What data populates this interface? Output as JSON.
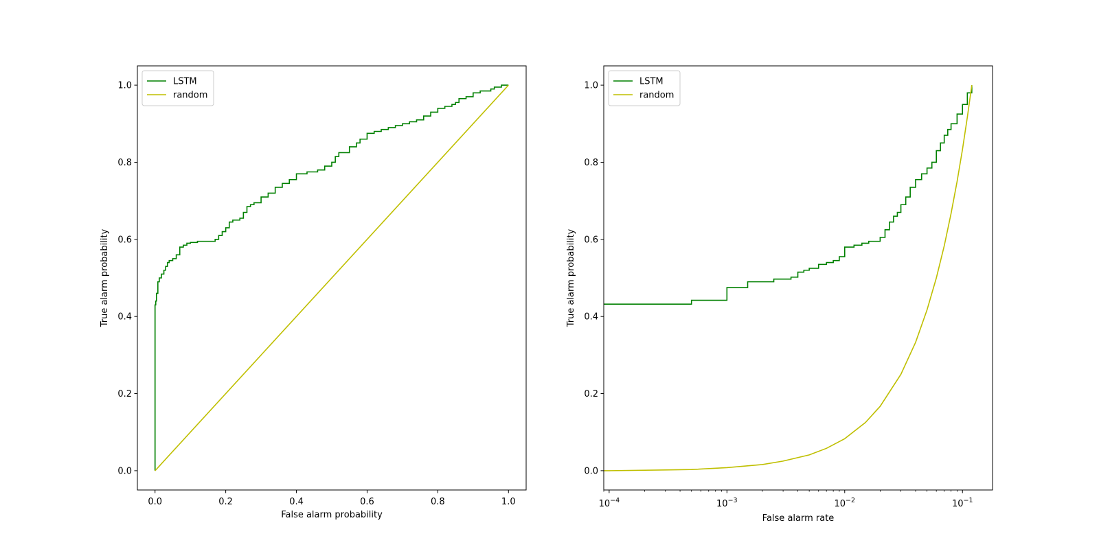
{
  "chart_data": [
    {
      "type": "line",
      "xlabel": "False alarm probability",
      "ylabel": "True alarm probability",
      "xscale": "linear",
      "xlim": [
        -0.05,
        1.05
      ],
      "ylim": [
        -0.05,
        1.05
      ],
      "xticks": [
        0.0,
        0.2,
        0.4,
        0.6,
        0.8,
        1.0
      ],
      "xtick_labels": [
        "0.0",
        "0.2",
        "0.4",
        "0.6",
        "0.8",
        "1.0"
      ],
      "yticks": [
        0.0,
        0.2,
        0.4,
        0.6,
        0.8,
        1.0
      ],
      "ytick_labels": [
        "0.0",
        "0.2",
        "0.4",
        "0.6",
        "0.8",
        "1.0"
      ],
      "legend": "top-left",
      "grid": false,
      "series": [
        {
          "name": "LSTM",
          "color": "#008000",
          "step": true,
          "x": [
            0.0,
            0.0,
            0.002,
            0.004,
            0.008,
            0.012,
            0.018,
            0.025,
            0.03,
            0.035,
            0.04,
            0.05,
            0.06,
            0.07,
            0.08,
            0.09,
            0.1,
            0.12,
            0.15,
            0.17,
            0.18,
            0.19,
            0.2,
            0.21,
            0.22,
            0.24,
            0.25,
            0.26,
            0.27,
            0.28,
            0.3,
            0.32,
            0.34,
            0.36,
            0.38,
            0.4,
            0.43,
            0.46,
            0.48,
            0.5,
            0.51,
            0.52,
            0.55,
            0.57,
            0.58,
            0.6,
            0.62,
            0.64,
            0.66,
            0.68,
            0.7,
            0.72,
            0.74,
            0.76,
            0.78,
            0.8,
            0.82,
            0.84,
            0.85,
            0.86,
            0.88,
            0.9,
            0.92,
            0.95,
            0.96,
            0.98,
            1.0
          ],
          "y": [
            0.0,
            0.43,
            0.44,
            0.46,
            0.49,
            0.5,
            0.51,
            0.52,
            0.53,
            0.54,
            0.545,
            0.55,
            0.56,
            0.58,
            0.585,
            0.59,
            0.592,
            0.595,
            0.595,
            0.6,
            0.61,
            0.62,
            0.63,
            0.645,
            0.65,
            0.655,
            0.67,
            0.685,
            0.69,
            0.695,
            0.71,
            0.72,
            0.735,
            0.745,
            0.755,
            0.77,
            0.775,
            0.78,
            0.79,
            0.8,
            0.815,
            0.825,
            0.84,
            0.85,
            0.86,
            0.875,
            0.88,
            0.885,
            0.89,
            0.895,
            0.9,
            0.905,
            0.91,
            0.92,
            0.93,
            0.94,
            0.945,
            0.95,
            0.955,
            0.965,
            0.97,
            0.98,
            0.985,
            0.99,
            0.995,
            1.0,
            1.0
          ]
        },
        {
          "name": "random",
          "color": "#bfbf00",
          "x": [
            0.0,
            1.0
          ],
          "y": [
            0.0,
            1.0
          ]
        }
      ]
    },
    {
      "type": "line",
      "xlabel": "False alarm rate",
      "ylabel": "True alarm probability",
      "xscale": "log",
      "xlim": [
        9e-05,
        0.18
      ],
      "ylim": [
        -0.05,
        1.05
      ],
      "xticks": [
        0.0001,
        0.001,
        0.01,
        0.1
      ],
      "xtick_labels": [
        "10⁻⁴",
        "10⁻³",
        "10⁻²",
        "10⁻¹"
      ],
      "yticks": [
        0.0,
        0.2,
        0.4,
        0.6,
        0.8,
        1.0
      ],
      "ytick_labels": [
        "0.0",
        "0.2",
        "0.4",
        "0.6",
        "0.8",
        "1.0"
      ],
      "legend": "top-left",
      "grid": false,
      "series": [
        {
          "name": "LSTM",
          "color": "#008000",
          "step": true,
          "x": [
            9e-05,
            0.0005,
            0.001,
            0.0015,
            0.0025,
            0.0035,
            0.004,
            0.0045,
            0.005,
            0.006,
            0.007,
            0.008,
            0.009,
            0.01,
            0.012,
            0.014,
            0.016,
            0.02,
            0.022,
            0.024,
            0.026,
            0.028,
            0.03,
            0.033,
            0.036,
            0.04,
            0.045,
            0.05,
            0.055,
            0.06,
            0.065,
            0.07,
            0.075,
            0.08,
            0.09,
            0.1,
            0.11,
            0.12
          ],
          "y": [
            0.432,
            0.442,
            0.475,
            0.49,
            0.497,
            0.502,
            0.515,
            0.52,
            0.525,
            0.535,
            0.54,
            0.545,
            0.555,
            0.58,
            0.585,
            0.59,
            0.595,
            0.605,
            0.625,
            0.645,
            0.66,
            0.67,
            0.69,
            0.71,
            0.735,
            0.755,
            0.77,
            0.785,
            0.8,
            0.83,
            0.85,
            0.87,
            0.885,
            0.9,
            0.925,
            0.95,
            0.98,
            1.0
          ]
        },
        {
          "name": "random",
          "color": "#bfbf00",
          "x": [
            9e-05,
            0.0001,
            0.0003,
            0.0005,
            0.001,
            0.002,
            0.003,
            0.005,
            0.007,
            0.01,
            0.015,
            0.02,
            0.03,
            0.04,
            0.05,
            0.06,
            0.07,
            0.08,
            0.09,
            0.1,
            0.11,
            0.12
          ],
          "y": [
            0.0,
            0.0,
            0.002,
            0.003,
            0.008,
            0.016,
            0.025,
            0.041,
            0.058,
            0.083,
            0.125,
            0.167,
            0.25,
            0.333,
            0.417,
            0.5,
            0.583,
            0.667,
            0.75,
            0.833,
            0.917,
            1.0
          ]
        }
      ]
    }
  ]
}
